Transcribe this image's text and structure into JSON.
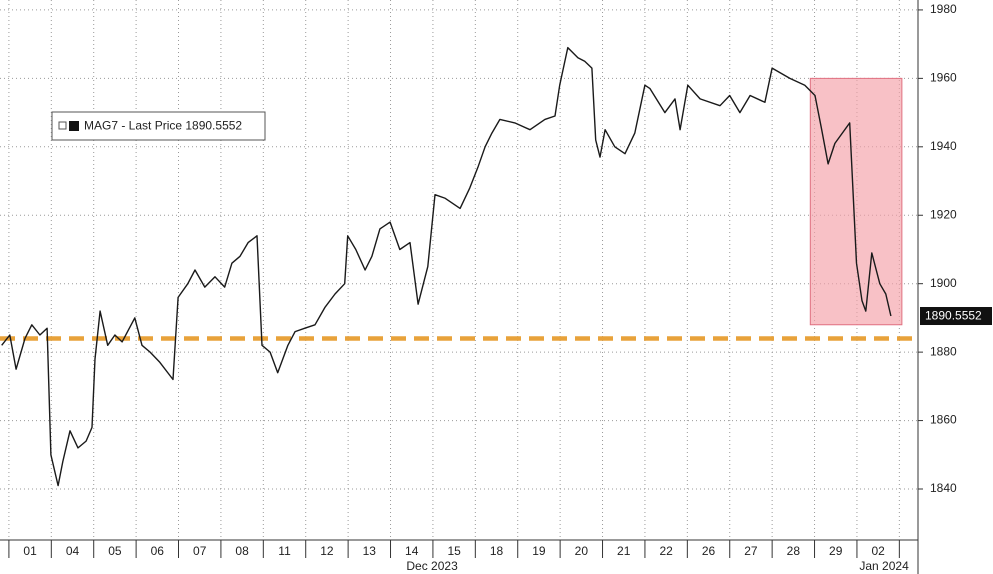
{
  "chart_data": {
    "type": "line",
    "series": [
      {
        "name": "MAG7 - Last Price 1890.5552",
        "color": "#1a1a1a",
        "x": [
          -0.17,
          0.02,
          0.17,
          0.38,
          0.54,
          0.73,
          0.9,
          0.99,
          1.16,
          1.27,
          1.44,
          1.63,
          1.82,
          1.96,
          2.03,
          2.15,
          2.33,
          2.5,
          2.67,
          2.97,
          3.14,
          3.33,
          3.56,
          3.87,
          3.99,
          4.22,
          4.39,
          4.62,
          4.86,
          5.09,
          5.26,
          5.45,
          5.64,
          5.85,
          5.97,
          6.16,
          6.34,
          6.58,
          6.75,
          6.98,
          7.22,
          7.45,
          7.69,
          7.92,
          7.99,
          8.18,
          8.4,
          8.56,
          8.75,
          8.99,
          9.22,
          9.46,
          9.65,
          9.88,
          10.05,
          10.28,
          10.64,
          10.87,
          11.06,
          11.23,
          11.39,
          11.58,
          11.93,
          12.29,
          12.64,
          12.88,
          12.99,
          13.18,
          13.42,
          13.58,
          13.75,
          13.84,
          13.94,
          14.06,
          14.29,
          14.53,
          14.76,
          15.0,
          15.12,
          15.47,
          15.71,
          15.83,
          16.01,
          16.3,
          16.77,
          17.0,
          17.24,
          17.48,
          17.83,
          18.0,
          18.42,
          18.77,
          19.01,
          19.17,
          19.32,
          19.48,
          19.83,
          19.99,
          20.12,
          20.21,
          20.35,
          20.54,
          20.68,
          20.8
        ],
        "values": [
          1882,
          1885,
          1875,
          1884,
          1888,
          1885,
          1887,
          1850,
          1841,
          1848,
          1857,
          1852,
          1854,
          1858,
          1878,
          1892,
          1882,
          1885,
          1883,
          1890,
          1882,
          1880,
          1877,
          1872,
          1896,
          1900,
          1904,
          1899,
          1902,
          1899,
          1906,
          1908,
          1912,
          1914,
          1882,
          1880,
          1874,
          1882,
          1886,
          1887,
          1888,
          1893,
          1897,
          1900,
          1914,
          1910,
          1904,
          1908,
          1916,
          1918,
          1910,
          1912,
          1894,
          1905,
          1926,
          1925,
          1922,
          1928,
          1934,
          1940,
          1944,
          1948,
          1947,
          1945,
          1948,
          1949,
          1958,
          1969,
          1966,
          1965,
          1963,
          1942,
          1937,
          1945,
          1940,
          1938,
          1944,
          1958,
          1957,
          1950,
          1954,
          1945,
          1958,
          1954,
          1952,
          1955,
          1950,
          1955,
          1953,
          1963,
          1960,
          1958,
          1955,
          1945,
          1935,
          1941,
          1947,
          1906,
          1895,
          1892,
          1909,
          1900,
          1897,
          1890.5552
        ]
      }
    ],
    "last_price": 1890.5552,
    "xlim": [
      -0.21,
      21.44
    ],
    "ylim": [
      1825.1,
      1982.9
    ],
    "yticks": [
      1840,
      1860,
      1880,
      1900,
      1920,
      1940,
      1960,
      1980
    ],
    "xticks": [
      {
        "value": 0.5,
        "label": "01"
      },
      {
        "value": 1.5,
        "label": "04"
      },
      {
        "value": 2.5,
        "label": "05"
      },
      {
        "value": 3.5,
        "label": "06"
      },
      {
        "value": 4.5,
        "label": "07"
      },
      {
        "value": 5.5,
        "label": "08"
      },
      {
        "value": 6.5,
        "label": "11"
      },
      {
        "value": 7.5,
        "label": "12"
      },
      {
        "value": 8.5,
        "label": "13"
      },
      {
        "value": 9.5,
        "label": "14"
      },
      {
        "value": 10.5,
        "label": "15"
      },
      {
        "value": 11.5,
        "label": "18"
      },
      {
        "value": 12.5,
        "label": "19"
      },
      {
        "value": 13.5,
        "label": "20"
      },
      {
        "value": 14.5,
        "label": "21"
      },
      {
        "value": 15.5,
        "label": "22"
      },
      {
        "value": 16.5,
        "label": "26"
      },
      {
        "value": 17.5,
        "label": "27"
      },
      {
        "value": 18.5,
        "label": "28"
      },
      {
        "value": 19.5,
        "label": "29"
      },
      {
        "value": 20.5,
        "label": "02"
      }
    ],
    "day_boundaries": [
      0,
      1,
      2,
      3,
      4,
      5,
      6,
      7,
      8,
      9,
      10,
      11,
      12,
      13,
      14,
      15,
      16,
      17,
      18,
      19,
      20,
      21
    ],
    "periods": [
      {
        "label": "Dec 2023",
        "at": 9.98
      },
      {
        "label": "Jan 2024",
        "at": 20.64
      }
    ],
    "reference_line": {
      "value": 1884,
      "color": "#e8a23a"
    },
    "highlight": {
      "x": [
        18.9,
        21.06
      ],
      "y": [
        1888,
        1960
      ],
      "color": "#f4a0a8"
    },
    "grid": true
  }
}
